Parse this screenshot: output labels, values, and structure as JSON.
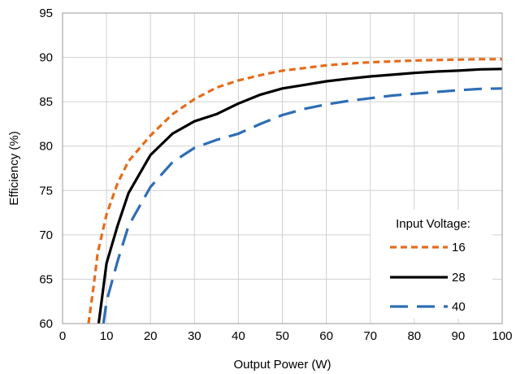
{
  "chart_data": {
    "type": "line",
    "xlabel": "Output Power (W)",
    "ylabel": "Efficiency (%)",
    "xlim": [
      0,
      100
    ],
    "ylim": [
      60,
      95
    ],
    "xticks": [
      0,
      10,
      20,
      30,
      40,
      50,
      60,
      70,
      80,
      90,
      100
    ],
    "yticks": [
      60,
      65,
      70,
      75,
      80,
      85,
      90,
      95
    ],
    "grid": true,
    "legend": {
      "title": "Input Voltage:",
      "position": "bottom-right"
    },
    "series": [
      {
        "name": "16",
        "color": "#E46C1E",
        "style": "short-dash",
        "points": [
          [
            5.9,
            60.0
          ],
          [
            7,
            64
          ],
          [
            8,
            68
          ],
          [
            10,
            72.3
          ],
          [
            12.5,
            75.8
          ],
          [
            15,
            78.3
          ],
          [
            20,
            81.2
          ],
          [
            25,
            83.6
          ],
          [
            30,
            85.3
          ],
          [
            35,
            86.6
          ],
          [
            40,
            87.4
          ],
          [
            45,
            88.0
          ],
          [
            50,
            88.5
          ],
          [
            55,
            88.8
          ],
          [
            60,
            89.1
          ],
          [
            65,
            89.3
          ],
          [
            70,
            89.45
          ],
          [
            75,
            89.55
          ],
          [
            80,
            89.65
          ],
          [
            85,
            89.7
          ],
          [
            90,
            89.75
          ],
          [
            95,
            89.8
          ],
          [
            100,
            89.8
          ]
        ]
      },
      {
        "name": "28",
        "color": "#000000",
        "style": "solid",
        "points": [
          [
            8.2,
            60.0
          ],
          [
            9,
            63
          ],
          [
            10,
            66.8
          ],
          [
            12.5,
            71
          ],
          [
            15,
            74.7
          ],
          [
            20,
            79.0
          ],
          [
            25,
            81.4
          ],
          [
            30,
            82.8
          ],
          [
            35,
            83.6
          ],
          [
            40,
            84.8
          ],
          [
            45,
            85.8
          ],
          [
            50,
            86.5
          ],
          [
            55,
            86.9
          ],
          [
            60,
            87.3
          ],
          [
            65,
            87.6
          ],
          [
            70,
            87.85
          ],
          [
            75,
            88.05
          ],
          [
            80,
            88.25
          ],
          [
            85,
            88.4
          ],
          [
            90,
            88.5
          ],
          [
            95,
            88.65
          ],
          [
            100,
            88.7
          ]
        ]
      },
      {
        "name": "40",
        "color": "#2E6DB4",
        "style": "long-dash",
        "points": [
          [
            9.3,
            60.0
          ],
          [
            10,
            62.5
          ],
          [
            12.5,
            67
          ],
          [
            15,
            71.0
          ],
          [
            20,
            75.4
          ],
          [
            25,
            78.2
          ],
          [
            30,
            79.8
          ],
          [
            35,
            80.7
          ],
          [
            40,
            81.4
          ],
          [
            45,
            82.5
          ],
          [
            50,
            83.5
          ],
          [
            55,
            84.2
          ],
          [
            60,
            84.7
          ],
          [
            65,
            85.1
          ],
          [
            70,
            85.4
          ],
          [
            75,
            85.7
          ],
          [
            80,
            85.9
          ],
          [
            85,
            86.1
          ],
          [
            90,
            86.3
          ],
          [
            95,
            86.45
          ],
          [
            100,
            86.5
          ]
        ]
      }
    ]
  }
}
